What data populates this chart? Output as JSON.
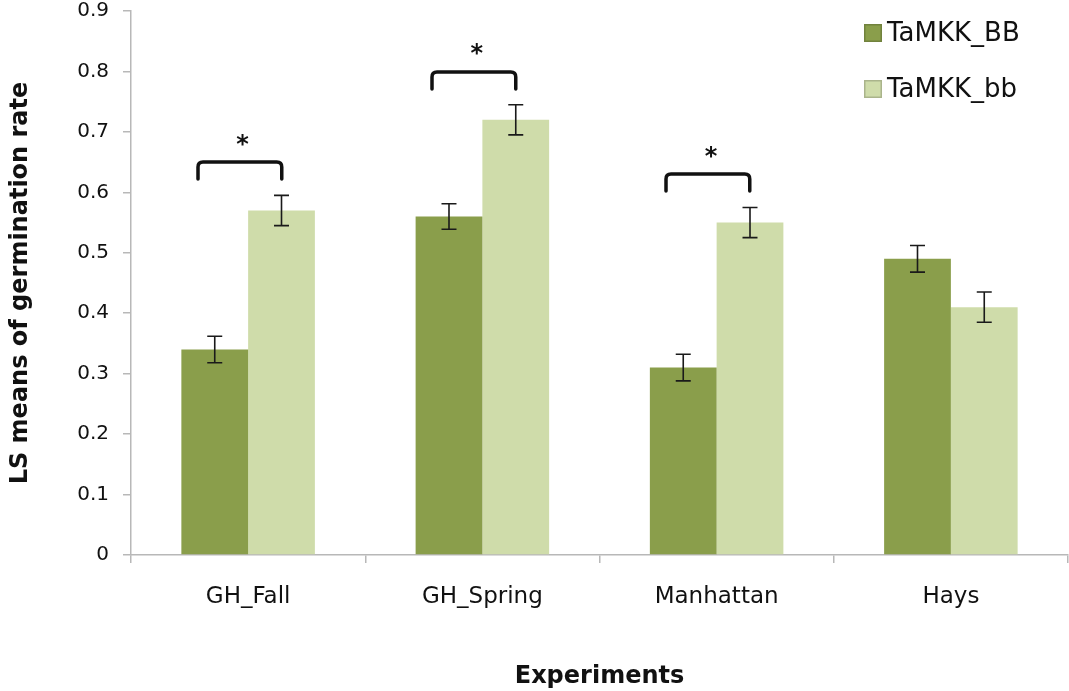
{
  "chart_data": {
    "type": "bar",
    "xlabel": "Experiments",
    "ylabel": "LS means of germination rate",
    "categories": [
      "GH_Fall",
      "GH_Spring",
      "Manhattan",
      "Hays"
    ],
    "series": [
      {
        "name": "TaMKK_BB",
        "color": "#8a9e4b",
        "values": [
          0.34,
          0.56,
          0.31,
          0.49
        ],
        "errors": [
          0.022,
          0.021,
          0.022,
          0.022
        ]
      },
      {
        "name": "TaMKK_bb",
        "color": "#cfdcaa",
        "values": [
          0.57,
          0.72,
          0.55,
          0.41
        ],
        "errors": [
          0.025,
          0.025,
          0.025,
          0.025
        ]
      }
    ],
    "ylim": [
      0,
      0.9
    ],
    "yticks": [
      0,
      0.1,
      0.2,
      0.3,
      0.4,
      0.5,
      0.6,
      0.7,
      0.8,
      0.9
    ],
    "legend": "top right",
    "annotations": [
      "*",
      "*",
      "*"
    ]
  }
}
